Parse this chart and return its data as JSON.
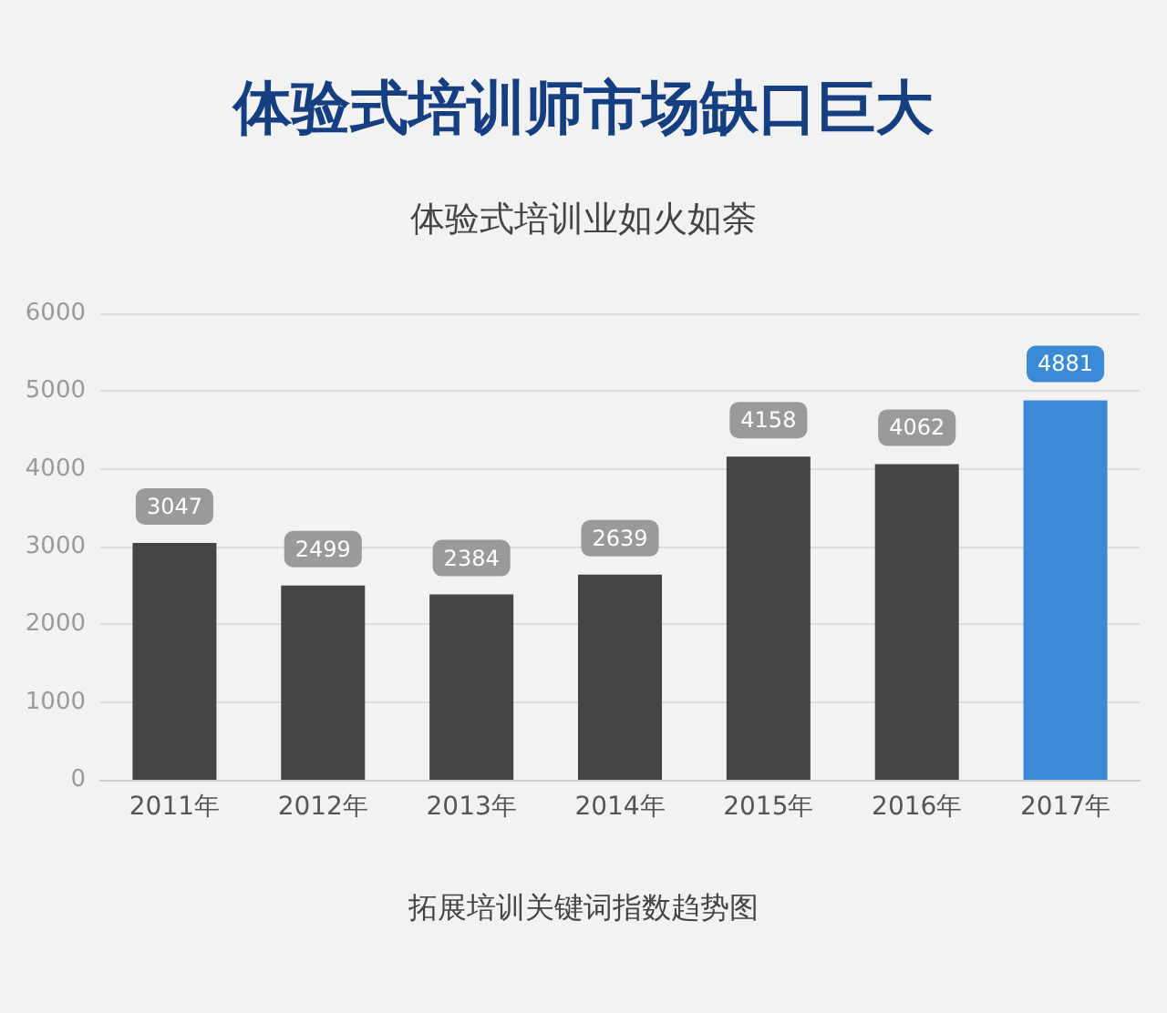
{
  "chart_data": {
    "type": "bar",
    "title": "体验式培训师市场缺口巨大",
    "subtitle": "体验式培训业如火如荼",
    "annotations": [
      "拓展培训关键词指数趋势图"
    ],
    "categories": [
      "2011年",
      "2012年",
      "2013年",
      "2014年",
      "2015年",
      "2016年",
      "2017年"
    ],
    "values": [
      3047,
      2499,
      2384,
      2639,
      4158,
      4062,
      4881
    ],
    "colors": [
      "#454545",
      "#454545",
      "#454545",
      "#454545",
      "#454545",
      "#454545",
      "#3a8ad6"
    ],
    "ylim": [
      0,
      6000
    ],
    "yticks": [
      0,
      1000,
      2000,
      3000,
      4000,
      5000,
      6000
    ],
    "grid": "y",
    "data_labels": true
  }
}
